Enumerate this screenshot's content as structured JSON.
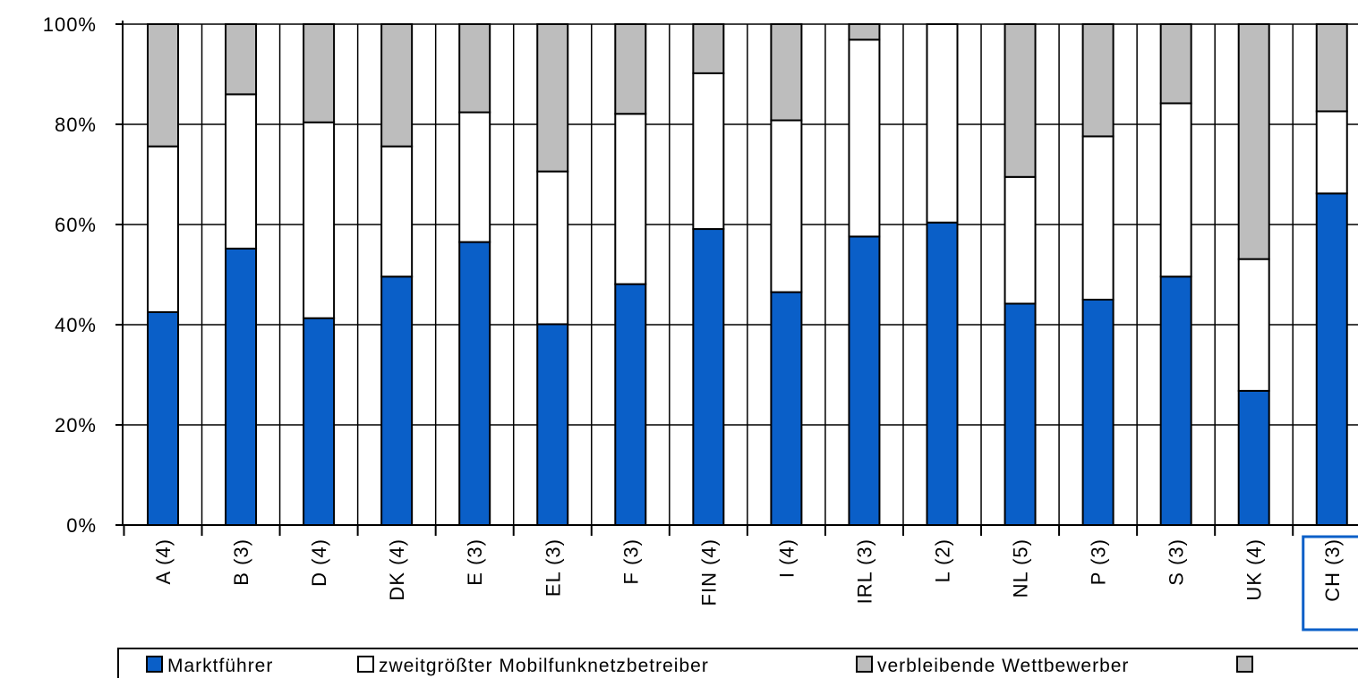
{
  "chart_data": {
    "type": "bar",
    "stacked": true,
    "categories": [
      "A (4)",
      "B (3)",
      "D (4)",
      "DK (4)",
      "E (3)",
      "EL (3)",
      "F (3)",
      "FIN (4)",
      "I (4)",
      "IRL (3)",
      "L (2)",
      "NL (5)",
      "P (3)",
      "S (3)",
      "UK (4)",
      "CH (3)"
    ],
    "highlighted_category": "CH (3)",
    "series": [
      {
        "name": "Marktführer",
        "color": "#0a5fc8",
        "values": [
          42.5,
          55.2,
          41.3,
          49.6,
          56.5,
          40.1,
          48.1,
          59.1,
          46.5,
          57.6,
          60.4,
          44.2,
          45.0,
          49.6,
          26.8,
          66.2
        ]
      },
      {
        "name": "zweitgrößter Mobilfunknetzbetreiber",
        "color": "#ffffff",
        "values": [
          33.1,
          30.8,
          39.1,
          26.0,
          25.9,
          30.5,
          34.0,
          31.1,
          34.3,
          39.3,
          39.6,
          25.3,
          32.6,
          34.6,
          26.3,
          16.4
        ]
      },
      {
        "name": "verbleibende Wettbewerber",
        "color": "#bdbdbd",
        "values": [
          24.4,
          14.0,
          19.6,
          24.4,
          17.6,
          29.4,
          17.9,
          9.8,
          19.2,
          3.1,
          0.0,
          30.5,
          22.4,
          15.8,
          46.9,
          17.4
        ]
      }
    ],
    "legend_extra_color": "#bdbdbd",
    "yticks": [
      "0%",
      "20%",
      "40%",
      "60%",
      "80%",
      "100%"
    ],
    "ylim": [
      0,
      100
    ],
    "grid": true,
    "legend_position": "bottom"
  }
}
